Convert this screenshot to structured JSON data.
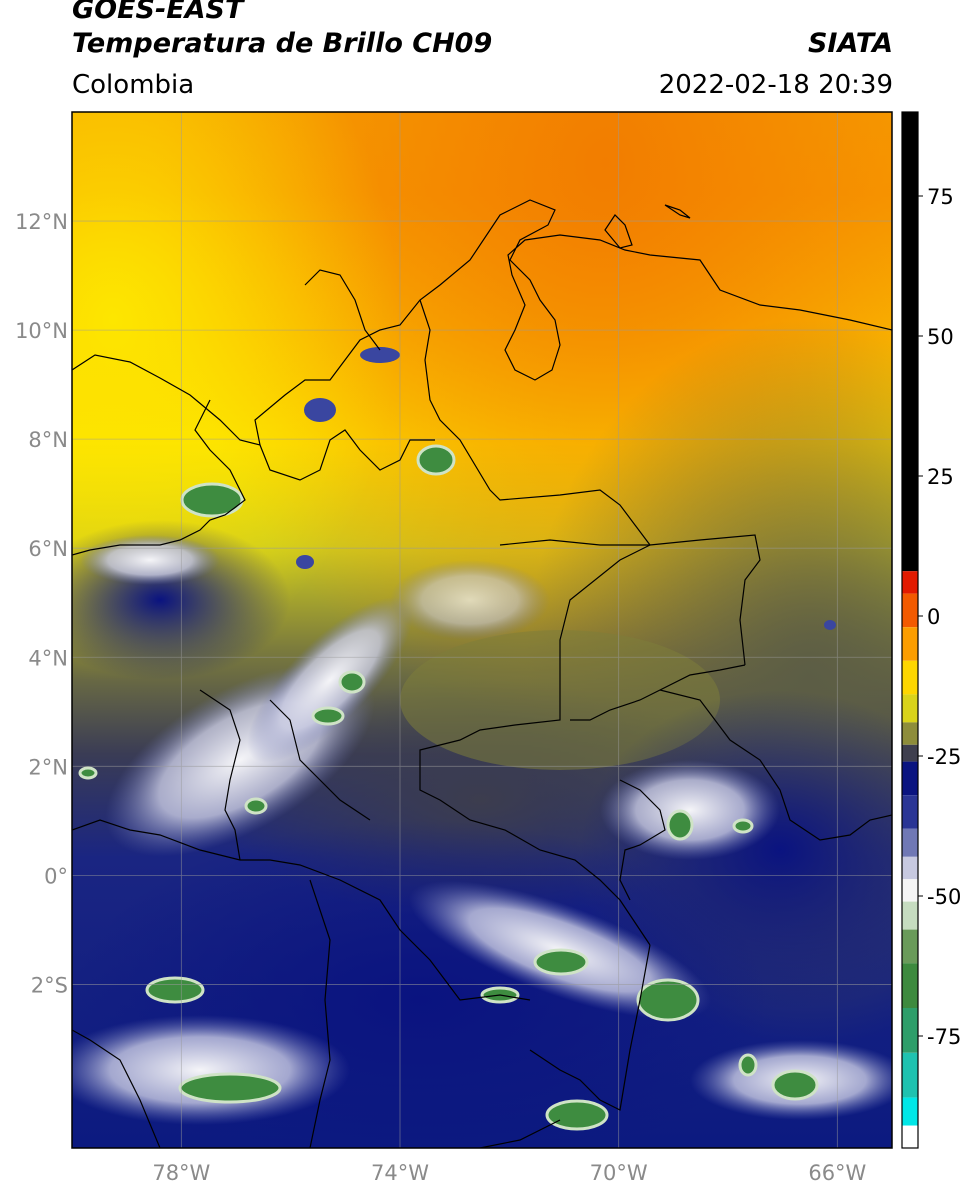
{
  "header": {
    "title_line1": "GOES-EAST",
    "title_line2": "Temperatura de Brillo CH09",
    "organization": "SIATA",
    "region": "Colombia",
    "timestamp": "2022-02-18 20:39"
  },
  "map": {
    "lon_range": [
      -80,
      -65
    ],
    "lat_range": [
      -5,
      14
    ],
    "lon_ticks": [
      {
        "value": -78,
        "label": "78°W"
      },
      {
        "value": -74,
        "label": "74°W"
      },
      {
        "value": -70,
        "label": "70°W"
      },
      {
        "value": -66,
        "label": "66°W"
      }
    ],
    "lat_ticks": [
      {
        "value": 12,
        "label": "12°N"
      },
      {
        "value": 10,
        "label": "10°N"
      },
      {
        "value": 8,
        "label": "8°N"
      },
      {
        "value": 6,
        "label": "6°N"
      },
      {
        "value": 4,
        "label": "4°N"
      },
      {
        "value": 2,
        "label": "2°N"
      },
      {
        "value": 0,
        "label": "0°"
      },
      {
        "value": -2,
        "label": "2°S"
      }
    ]
  },
  "colorbar": {
    "range": [
      -95,
      90
    ],
    "ticks": [
      {
        "value": 75,
        "label": "75"
      },
      {
        "value": 50,
        "label": "50"
      },
      {
        "value": 25,
        "label": "25"
      },
      {
        "value": 0,
        "label": "0"
      },
      {
        "value": -25,
        "label": "-25"
      },
      {
        "value": -50,
        "label": "-50"
      },
      {
        "value": -75,
        "label": "-75"
      }
    ],
    "segments": [
      {
        "from": 8,
        "to": 90,
        "color": "#000000"
      },
      {
        "from": 4,
        "to": 8,
        "color": "#e21a00"
      },
      {
        "from": -2,
        "to": 4,
        "color": "#f25a00"
      },
      {
        "from": -8,
        "to": -2,
        "color": "#fb9d00"
      },
      {
        "from": -14,
        "to": -8,
        "color": "#fdd600"
      },
      {
        "from": -19,
        "to": -14,
        "color": "#d9d31a"
      },
      {
        "from": -23,
        "to": -19,
        "color": "#8e8d3a"
      },
      {
        "from": -26,
        "to": -23,
        "color": "#3f3f4e"
      },
      {
        "from": -32,
        "to": -26,
        "color": "#0a1480"
      },
      {
        "from": -38,
        "to": -32,
        "color": "#2a3595"
      },
      {
        "from": -43,
        "to": -38,
        "color": "#7078b5"
      },
      {
        "from": -47,
        "to": -43,
        "color": "#c7c9e0"
      },
      {
        "from": -51,
        "to": -47,
        "color": "#f5f5f5"
      },
      {
        "from": -56,
        "to": -51,
        "color": "#c6dcc0"
      },
      {
        "from": -62,
        "to": -56,
        "color": "#6a9b5a"
      },
      {
        "from": -70,
        "to": -62,
        "color": "#3d8a3e"
      },
      {
        "from": -78,
        "to": -70,
        "color": "#2e9e6a"
      },
      {
        "from": -86,
        "to": -78,
        "color": "#1fc2b0"
      },
      {
        "from": -91,
        "to": -86,
        "color": "#00e6e6"
      },
      {
        "from": -95,
        "to": -91,
        "color": "#ffffff"
      }
    ]
  }
}
